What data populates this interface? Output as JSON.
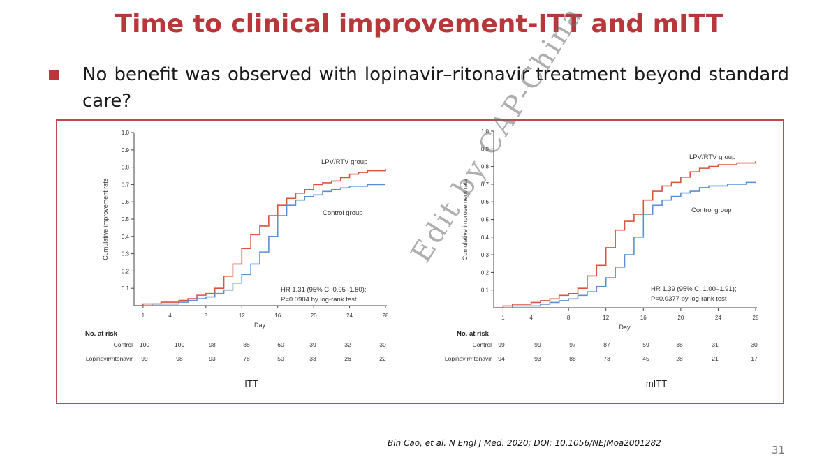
{
  "slide": {
    "title": "Time to clinical improvement-ITT and mITT",
    "bullet": "No benefit was observed with lopinavir–ritonavir treatment beyond standard care?",
    "watermark": "Edit by CAP-China",
    "citation": "Bin Cao, et al. N Engl J Med. 2020; DOI: 10.1056/NEJMoa2001282",
    "page_number": "31",
    "colors": {
      "title": "#b8373a",
      "frame": "#c2494b",
      "lpv": "#d9533f",
      "control": "#5b8fd1"
    }
  },
  "chart_data": [
    {
      "type": "line",
      "panel_label": "ITT",
      "ylabel": "Cumulative improvement rate",
      "xlabel": "Day",
      "xlim": [
        0,
        28
      ],
      "ylim": [
        0,
        1.0
      ],
      "x_ticks": [
        "1",
        "4",
        "8",
        "12",
        "16",
        "20",
        "24",
        "28"
      ],
      "y_ticks": [
        "0.1",
        "0.2",
        "0.3",
        "0.4",
        "0.5",
        "0.6",
        "0.7",
        "0.8",
        "0.9",
        "1.0"
      ],
      "series": [
        {
          "name": "LPV/RTV group",
          "color": "#d9533f",
          "x": [
            0,
            1,
            2,
            3,
            4,
            5,
            6,
            7,
            8,
            9,
            10,
            11,
            12,
            13,
            14,
            15,
            16,
            17,
            18,
            19,
            20,
            21,
            22,
            23,
            24,
            25,
            26,
            27,
            28
          ],
          "y": [
            0,
            0.01,
            0.01,
            0.02,
            0.02,
            0.03,
            0.04,
            0.06,
            0.07,
            0.1,
            0.17,
            0.24,
            0.33,
            0.41,
            0.46,
            0.52,
            0.58,
            0.62,
            0.65,
            0.67,
            0.7,
            0.71,
            0.72,
            0.74,
            0.76,
            0.77,
            0.78,
            0.78,
            0.79
          ]
        },
        {
          "name": "Control group",
          "color": "#5b8fd1",
          "x": [
            0,
            1,
            2,
            3,
            4,
            5,
            6,
            7,
            8,
            9,
            10,
            11,
            12,
            13,
            14,
            15,
            16,
            17,
            18,
            19,
            20,
            21,
            22,
            23,
            24,
            25,
            26,
            27,
            28
          ],
          "y": [
            0,
            0,
            0.01,
            0.01,
            0.01,
            0.02,
            0.03,
            0.04,
            0.05,
            0.07,
            0.09,
            0.13,
            0.18,
            0.24,
            0.31,
            0.4,
            0.52,
            0.58,
            0.61,
            0.63,
            0.64,
            0.66,
            0.67,
            0.68,
            0.69,
            0.69,
            0.7,
            0.7,
            0.7
          ]
        }
      ],
      "annotation": [
        "HR 1.31 (95% CI 0.95–1.80);",
        "P=0.0904 by log-rank test"
      ],
      "risk_table": {
        "header": "No. at risk",
        "rows": [
          {
            "label": "Control",
            "values": [
              "100",
              "100",
              "98",
              "88",
              "60",
              "39",
              "32",
              "30"
            ]
          },
          {
            "label": "Lopinavir/ritonavir",
            "values": [
              "99",
              "98",
              "93",
              "78",
              "50",
              "33",
              "26",
              "22"
            ]
          }
        ]
      }
    },
    {
      "type": "line",
      "panel_label": "mITT",
      "ylabel": "Cumulative improvement rate",
      "xlabel": "Day",
      "xlim": [
        0,
        28
      ],
      "ylim": [
        0,
        1.0
      ],
      "x_ticks": [
        "1",
        "4",
        "8",
        "12",
        "16",
        "20",
        "24",
        "28"
      ],
      "y_ticks": [
        "0.1",
        "0.2",
        "0.3",
        "0.4",
        "0.5",
        "0.6",
        "0.7",
        "0.8",
        "0.9",
        "1.0"
      ],
      "series": [
        {
          "name": "LPV/RTV group",
          "color": "#d9533f",
          "x": [
            0,
            1,
            2,
            3,
            4,
            5,
            6,
            7,
            8,
            9,
            10,
            11,
            12,
            13,
            14,
            15,
            16,
            17,
            18,
            19,
            20,
            21,
            22,
            23,
            24,
            25,
            26,
            27,
            28
          ],
          "y": [
            0,
            0.01,
            0.02,
            0.02,
            0.03,
            0.04,
            0.05,
            0.07,
            0.08,
            0.11,
            0.18,
            0.24,
            0.34,
            0.44,
            0.49,
            0.53,
            0.61,
            0.66,
            0.69,
            0.71,
            0.74,
            0.77,
            0.79,
            0.8,
            0.81,
            0.81,
            0.82,
            0.82,
            0.83
          ]
        },
        {
          "name": "Control group",
          "color": "#5b8fd1",
          "x": [
            0,
            1,
            2,
            3,
            4,
            5,
            6,
            7,
            8,
            9,
            10,
            11,
            12,
            13,
            14,
            15,
            16,
            17,
            18,
            19,
            20,
            21,
            22,
            23,
            24,
            25,
            26,
            27,
            28
          ],
          "y": [
            0,
            0,
            0.01,
            0.01,
            0.01,
            0.02,
            0.03,
            0.04,
            0.05,
            0.07,
            0.09,
            0.12,
            0.17,
            0.23,
            0.3,
            0.4,
            0.53,
            0.58,
            0.61,
            0.63,
            0.65,
            0.66,
            0.68,
            0.69,
            0.69,
            0.7,
            0.7,
            0.71,
            0.71
          ]
        }
      ],
      "annotation": [
        "HR 1.39 (95% CI 1.00–1.91);",
        "P=0.0377 by log-rank test"
      ],
      "risk_table": {
        "header": "No. at risk",
        "rows": [
          {
            "label": "Control",
            "values": [
              "99",
              "99",
              "97",
              "87",
              "59",
              "38",
              "31",
              "30"
            ]
          },
          {
            "label": "Lopinavir/ritonavir",
            "values": [
              "94",
              "93",
              "88",
              "73",
              "45",
              "28",
              "21",
              "17"
            ]
          }
        ]
      }
    }
  ]
}
